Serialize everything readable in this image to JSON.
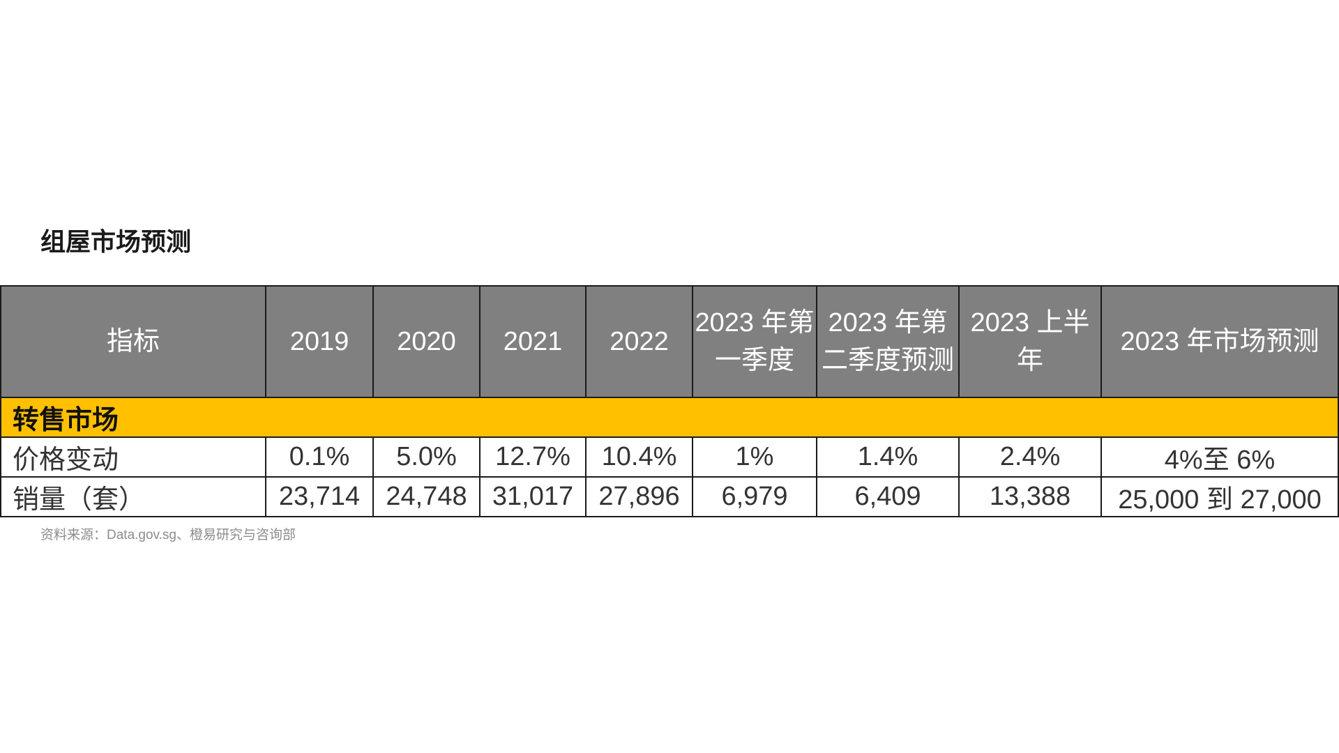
{
  "title": "组屋市场预测",
  "table": {
    "headers": [
      "指标",
      "2019",
      "2020",
      "2021",
      "2022",
      "2023 年第一季度",
      "2023 年第二季度预测",
      "2023 上半年",
      "2023 年市场预测"
    ],
    "section": "转售市场",
    "rows": [
      {
        "label": "价格变动",
        "values": [
          "0.1%",
          "5.0%",
          "12.7%",
          "10.4%",
          "1%",
          "1.4%",
          "2.4%",
          "4%至 6%"
        ]
      },
      {
        "label": "销量（套）",
        "values": [
          "23,714",
          "24,748",
          "31,017",
          "27,896",
          "6,979",
          "6,409",
          "13,388",
          "25,000 到 27,000"
        ]
      }
    ]
  },
  "source": "资料来源：Data.gov.sg、橙易研究与咨询部",
  "colors": {
    "header_bg": "#808080",
    "section_bg": "#ffc000"
  }
}
